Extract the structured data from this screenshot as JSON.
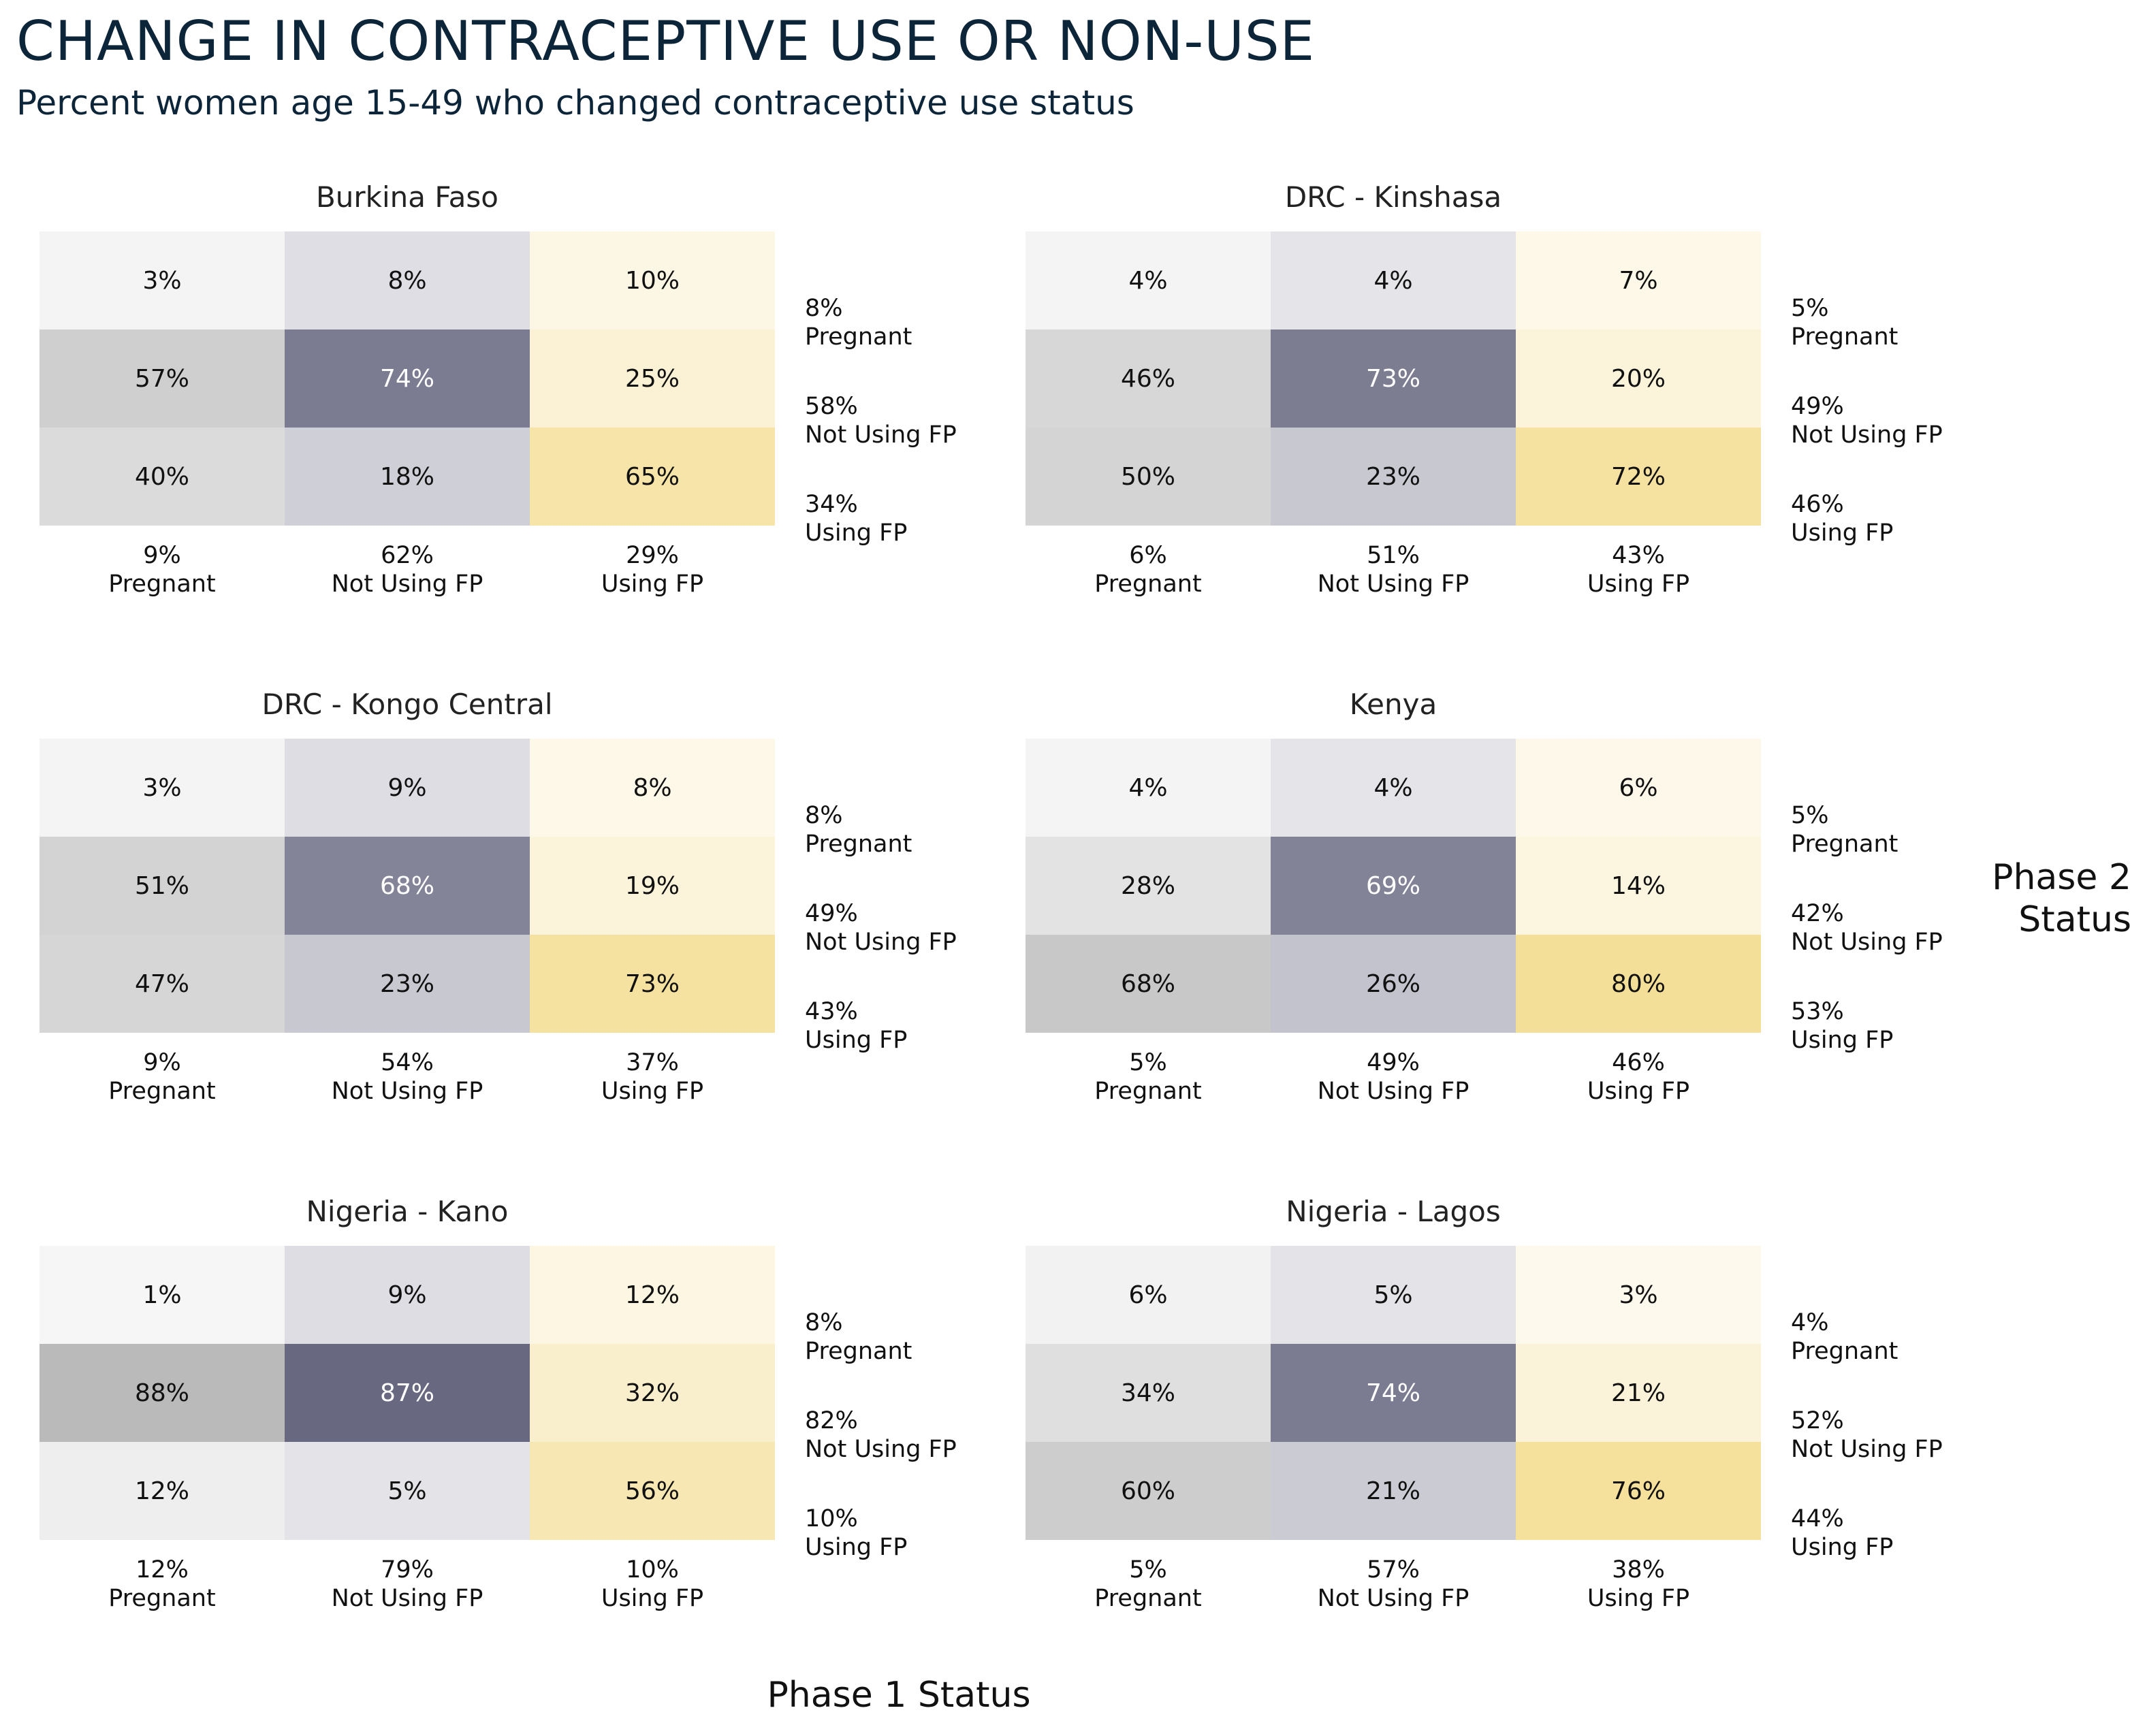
{
  "title": "CHANGE IN CONTRACEPTIVE USE OR NON-USE",
  "subtitle": "Percent women age 15-49 who changed contraceptive use status",
  "chart_data": {
    "type": "heatmap",
    "xlabel": "Phase 1 Status",
    "ylabel_lines": [
      "Phase 2",
      "Status"
    ],
    "column_categories": [
      "Pregnant",
      "Not Using FP",
      "Using FP"
    ],
    "row_categories": [
      "Pregnant",
      "Not Using FP",
      "Using FP"
    ],
    "colors": {
      "pregnant": "#f4f4f4",
      "not_using": "#545470",
      "using": "#f2d882"
    },
    "panels": [
      {
        "name": "Burkina Faso",
        "cells": [
          [
            3,
            8,
            10
          ],
          [
            57,
            74,
            25
          ],
          [
            40,
            18,
            65
          ]
        ],
        "row_totals": [
          8,
          58,
          34
        ],
        "col_totals": [
          9,
          62,
          29
        ]
      },
      {
        "name": "DRC - Kinshasa",
        "cells": [
          [
            4,
            4,
            7
          ],
          [
            46,
            73,
            20
          ],
          [
            50,
            23,
            72
          ]
        ],
        "row_totals": [
          5,
          49,
          46
        ],
        "col_totals": [
          6,
          51,
          43
        ]
      },
      {
        "name": "DRC - Kongo Central",
        "cells": [
          [
            3,
            9,
            8
          ],
          [
            51,
            68,
            19
          ],
          [
            47,
            23,
            73
          ]
        ],
        "row_totals": [
          8,
          49,
          43
        ],
        "col_totals": [
          9,
          54,
          37
        ]
      },
      {
        "name": "Kenya",
        "cells": [
          [
            4,
            4,
            6
          ],
          [
            28,
            69,
            14
          ],
          [
            68,
            26,
            80
          ]
        ],
        "row_totals": [
          5,
          42,
          53
        ],
        "col_totals": [
          5,
          49,
          46
        ]
      },
      {
        "name": "Nigeria - Kano",
        "cells": [
          [
            1,
            9,
            12
          ],
          [
            88,
            87,
            32
          ],
          [
            12,
            5,
            56
          ]
        ],
        "row_totals": [
          8,
          82,
          10
        ],
        "col_totals": [
          12,
          79,
          10
        ]
      },
      {
        "name": "Nigeria - Lagos",
        "cells": [
          [
            6,
            5,
            3
          ],
          [
            34,
            74,
            21
          ],
          [
            60,
            21,
            76
          ]
        ],
        "row_totals": [
          4,
          52,
          44
        ],
        "col_totals": [
          5,
          57,
          38
        ]
      }
    ]
  }
}
